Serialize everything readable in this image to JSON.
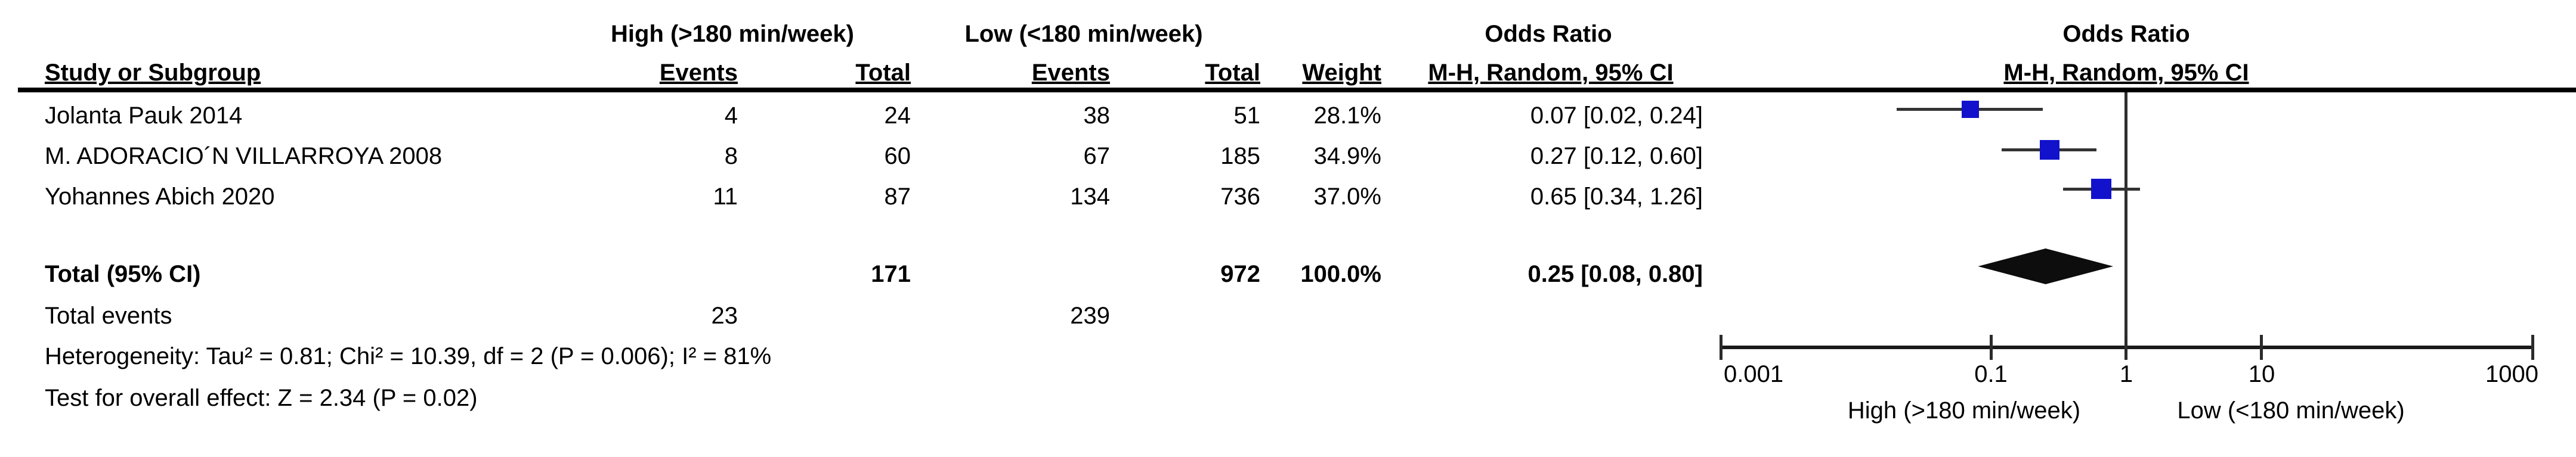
{
  "title_headers": {
    "group_high": "High (>180 min/week)",
    "group_low": "Low (<180 min/week)",
    "odds_ratio_text_col": {
      "line1": "Odds Ratio",
      "line2": "M-H, Random, 95% CI"
    },
    "odds_ratio_plot_col": {
      "line1": "Odds Ratio",
      "line2": "M-H, Random, 95% CI"
    }
  },
  "columns": {
    "study": "Study or Subgroup",
    "events": "Events",
    "total": "Total",
    "weight": "Weight"
  },
  "rows": [
    {
      "study": "Jolanta Pauk 2014",
      "events_high": "4",
      "total_high": "24",
      "events_low": "38",
      "total_low": "51",
      "weight": "28.1%",
      "or_ci": "0.07 [0.02, 0.24]"
    },
    {
      "study": "M. ADORACIO´N VILLARROYA 2008",
      "events_high": "8",
      "total_high": "60",
      "events_low": "67",
      "total_low": "185",
      "weight": "34.9%",
      "or_ci": "0.27 [0.12, 0.60]"
    },
    {
      "study": "Yohannes Abich 2020",
      "events_high": "11",
      "total_high": "87",
      "events_low": "134",
      "total_low": "736",
      "weight": "37.0%",
      "or_ci": "0.65 [0.34, 1.26]"
    }
  ],
  "total_row": {
    "label": "Total (95% CI)",
    "total_high": "171",
    "total_low": "972",
    "weight": "100.0%",
    "or_ci": "0.25 [0.08, 0.80]"
  },
  "total_events": {
    "label": "Total events",
    "events_high": "23",
    "events_low": "239"
  },
  "footnotes": {
    "heterogeneity": "Heterogeneity: Tau² = 0.81; Chi² = 10.39, df = 2 (P = 0.006); I² = 81%",
    "overall_effect": "Test for overall effect: Z = 2.34 (P = 0.02)"
  },
  "chart_data": {
    "type": "scatter",
    "subtype": "forest-plot",
    "title": "Odds Ratio — M-H, Random, 95% CI",
    "x_scale": "log",
    "axis": {
      "min": 0.001,
      "max": 1000,
      "ticks": [
        0.001,
        0.1,
        1,
        10,
        1000
      ],
      "tick_labels": [
        "0.001",
        "0.1",
        "1",
        "10",
        "1000"
      ],
      "left_label": "High (>180 min/week)",
      "right_label": "Low (<180 min/week)",
      "null_line": 1
    },
    "studies": [
      {
        "name": "Jolanta Pauk 2014",
        "or": 0.07,
        "ci_low": 0.02,
        "ci_high": 0.24,
        "weight_pct": 28.1
      },
      {
        "name": "M. ADORACIO´N VILLARROYA 2008",
        "or": 0.27,
        "ci_low": 0.12,
        "ci_high": 0.6,
        "weight_pct": 34.9
      },
      {
        "name": "Yohannes Abich 2020",
        "or": 0.65,
        "ci_low": 0.34,
        "ci_high": 1.26,
        "weight_pct": 37.0
      }
    ],
    "total": {
      "or": 0.25,
      "ci_low": 0.08,
      "ci_high": 0.8,
      "weight_pct": 100.0
    }
  },
  "colors": {
    "marker_blue": "#1212cc",
    "diamond_black": "#0d0d0d",
    "text": "#000000",
    "line": "#1a1a1a"
  }
}
